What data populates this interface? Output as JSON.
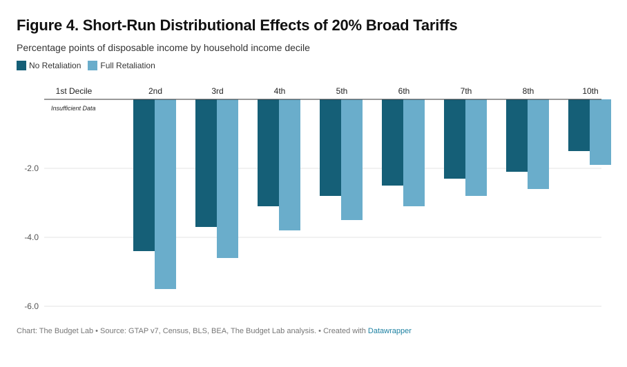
{
  "title": "Figure 4. Short-Run Distributional Effects of 20% Broad Tariffs",
  "subtitle": "Percentage points of disposable income by household income decile",
  "footer": {
    "text": "Chart: The Budget Lab • Source: GTAP v7, Census, BLS, BEA, The Budget Lab analysis. • Created with",
    "link": "Datawrapper"
  },
  "colors": {
    "no_retaliation": "#155f77",
    "full_retaliation": "#6aadcb"
  },
  "chart_data": {
    "type": "bar",
    "categories": [
      "1st Decile",
      "2nd",
      "3rd",
      "4th",
      "5th",
      "6th",
      "7th",
      "8th",
      "10th"
    ],
    "series": [
      {
        "name": "No Retaliation",
        "values": [
          null,
          -4.4,
          -3.7,
          -3.1,
          -2.8,
          -2.5,
          -2.3,
          -2.1,
          -1.5
        ]
      },
      {
        "name": "Full Retaliation",
        "values": [
          null,
          -5.5,
          -4.6,
          -3.8,
          -3.5,
          -3.1,
          -2.8,
          -2.6,
          -1.9
        ]
      }
    ],
    "ylim": [
      -6,
      0
    ],
    "yticks": [
      "-2.0",
      "-4.0",
      "-6.0"
    ],
    "ytick_values": [
      -2,
      -4,
      -6
    ],
    "annotation": "Insufficient Data",
    "legend_position": "top-left",
    "grid": true
  }
}
